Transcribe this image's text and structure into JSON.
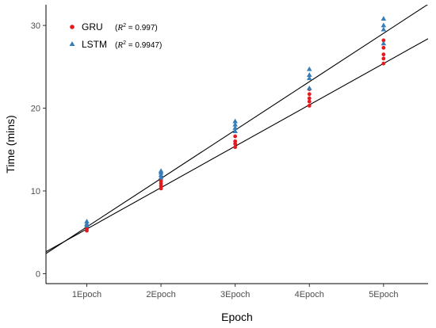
{
  "chart_data": {
    "type": "scatter",
    "xlabel": "Epoch",
    "ylabel": "Time (mins)",
    "categories": [
      "1Epoch",
      "2Epoch",
      "3Epoch",
      "4Epoch",
      "5Epoch"
    ],
    "y_ticks": [
      0,
      10,
      20,
      30
    ],
    "ylim": [
      -1.2,
      32.5
    ],
    "grid": false,
    "legend_position": "top-left",
    "series": [
      {
        "name": "GRU",
        "r2_label": "R",
        "r2_value": " = 0.997",
        "marker": "circle",
        "color": "#e41a1c",
        "points": [
          [
            1,
            5.2
          ],
          [
            1,
            5.4
          ],
          [
            1,
            5.6
          ],
          [
            1,
            5.8
          ],
          [
            2,
            10.3
          ],
          [
            2,
            10.6
          ],
          [
            2,
            10.9
          ],
          [
            2,
            11.2
          ],
          [
            3,
            15.3
          ],
          [
            3,
            15.7
          ],
          [
            3,
            16.0
          ],
          [
            3,
            16.6
          ],
          [
            4,
            20.3
          ],
          [
            4,
            20.8
          ],
          [
            4,
            21.2
          ],
          [
            4,
            21.7
          ],
          [
            4,
            22.3
          ],
          [
            5,
            25.4
          ],
          [
            5,
            26.0
          ],
          [
            5,
            26.5
          ],
          [
            5,
            27.3
          ],
          [
            5,
            28.2
          ]
        ],
        "fit": {
          "slope": 5.0,
          "intercept": 0.4
        }
      },
      {
        "name": "LSTM",
        "r2_label": "R",
        "r2_value": " = 0.9947",
        "marker": "triangle",
        "color": "#377eb8",
        "points": [
          [
            1,
            5.8
          ],
          [
            1,
            6.0
          ],
          [
            1,
            6.3
          ],
          [
            2,
            11.6
          ],
          [
            2,
            11.9
          ],
          [
            2,
            12.2
          ],
          [
            2,
            12.4
          ],
          [
            3,
            17.2
          ],
          [
            3,
            17.6
          ],
          [
            3,
            18.0
          ],
          [
            3,
            18.4
          ],
          [
            4,
            22.4
          ],
          [
            4,
            23.6
          ],
          [
            4,
            24.0
          ],
          [
            4,
            24.7
          ],
          [
            5,
            27.8
          ],
          [
            5,
            29.5
          ],
          [
            5,
            30.0
          ],
          [
            5,
            30.8
          ]
        ],
        "fit": {
          "slope": 5.85,
          "intercept": -0.2
        }
      }
    ]
  }
}
